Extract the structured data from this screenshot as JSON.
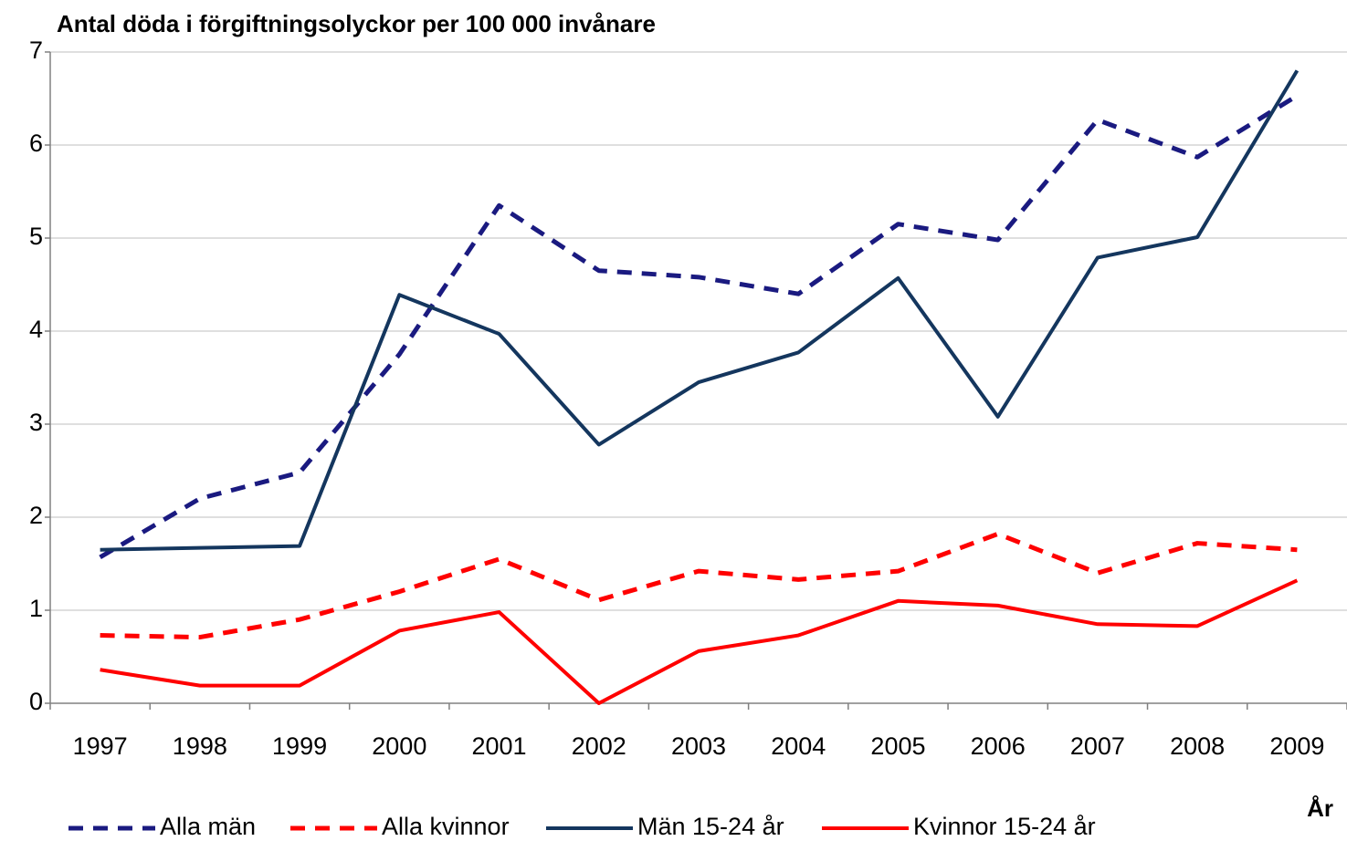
{
  "chart_data": {
    "type": "line",
    "title": "Antal döda i förgiftningsolyckor per 100 000 invånare",
    "x_label": "År",
    "categories": [
      "1997",
      "1998",
      "1999",
      "2000",
      "2001",
      "2002",
      "2003",
      "2004",
      "2005",
      "2006",
      "2007",
      "2008",
      "2009"
    ],
    "series": [
      {
        "name": "Alla män",
        "color": "#1a1a80",
        "dashed": true,
        "values": [
          1.57,
          2.2,
          2.48,
          3.75,
          5.35,
          4.65,
          4.58,
          4.4,
          5.15,
          4.98,
          6.27,
          5.87,
          6.53
        ]
      },
      {
        "name": "Alla kvinnor",
        "color": "#ff0000",
        "dashed": true,
        "values": [
          0.73,
          0.71,
          0.9,
          1.2,
          1.55,
          1.11,
          1.42,
          1.33,
          1.42,
          1.82,
          1.4,
          1.72,
          1.65
        ]
      },
      {
        "name": "Män 15-24 år",
        "color": "#14365e",
        "dashed": false,
        "values": [
          1.65,
          1.67,
          1.69,
          4.39,
          3.97,
          2.78,
          3.45,
          3.77,
          4.57,
          3.08,
          4.79,
          5.01,
          6.8
        ]
      },
      {
        "name": "Kvinnor 15-24 år",
        "color": "#ff0000",
        "dashed": false,
        "values": [
          0.36,
          0.19,
          0.19,
          0.78,
          0.98,
          0,
          0.56,
          0.73,
          1.1,
          1.05,
          0.85,
          0.83,
          1.32
        ]
      }
    ],
    "ylim": [
      0,
      7
    ],
    "yticks": [
      0,
      1,
      2,
      3,
      4,
      5,
      6,
      7
    ],
    "grid": true,
    "legend": "bottom"
  }
}
